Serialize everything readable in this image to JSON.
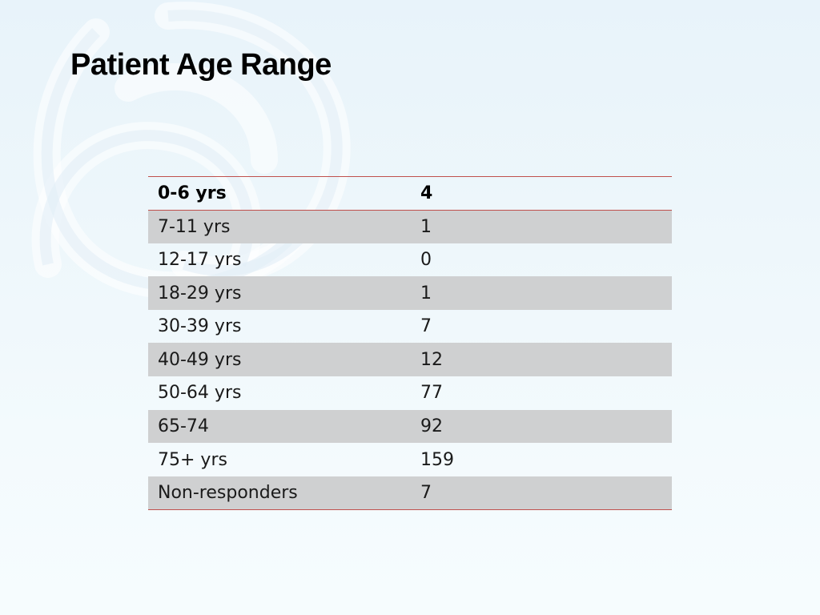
{
  "slide": {
    "title": "Patient Age Range"
  },
  "table": {
    "header": {
      "range": "0-6 yrs",
      "count": "4"
    },
    "rows": [
      {
        "range": "7-11 yrs",
        "count": "1"
      },
      {
        "range": "12-17 yrs",
        "count": "0"
      },
      {
        "range": "18-29 yrs",
        "count": "1"
      },
      {
        "range": "30-39 yrs",
        "count": "7"
      },
      {
        "range": "40-49 yrs",
        "count": "12"
      },
      {
        "range": "50-64 yrs",
        "count": "77"
      },
      {
        "range": "65-74",
        "count": "92"
      },
      {
        "range": "75+ yrs",
        "count": "159"
      },
      {
        "range": "Non-responders",
        "count": "7"
      }
    ]
  },
  "colors": {
    "rule": "#c0504d",
    "band": "#cfd0d1",
    "background": "#eef7fb"
  }
}
